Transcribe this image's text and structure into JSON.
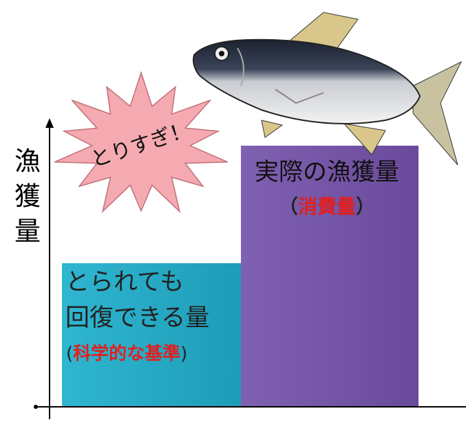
{
  "y_axis_label": [
    "漁",
    "獲",
    "量"
  ],
  "burst_label": "とりすぎ！",
  "bars": [
    {
      "lines": [
        "とられても",
        "回復できる量"
      ],
      "note": [
        "(",
        "科学的な基準",
        ")"
      ]
    },
    {
      "lines": [
        "実際の漁獲量"
      ],
      "note": [
        "（",
        "消費量",
        "）"
      ]
    }
  ]
}
